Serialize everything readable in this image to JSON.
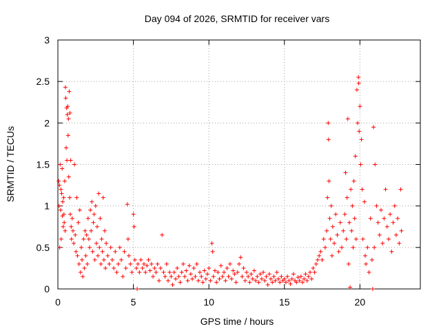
{
  "chart_data": {
    "type": "scatter",
    "title": "Day 094 of 2026, SRMTID for receiver vars",
    "xlabel": "GPS time / hours",
    "ylabel": "SRMTID / TECUs",
    "xlim": [
      0,
      24
    ],
    "ylim": [
      0,
      3
    ],
    "xticks": [
      0,
      5,
      10,
      15,
      20
    ],
    "yticks": [
      0,
      0.5,
      1,
      1.5,
      2,
      2.5,
      3
    ],
    "ytick_labels": [
      "0",
      "0.5",
      "1",
      "1.5",
      "2",
      "2.5",
      "3"
    ],
    "grid": true,
    "marker": "+",
    "color": "#ff0000",
    "series": [
      {
        "name": "SRMTID",
        "points": [
          [
            0.05,
            1.3
          ],
          [
            0.08,
            1.0
          ],
          [
            0.1,
            1.25
          ],
          [
            0.12,
            0.5
          ],
          [
            0.15,
            1.5
          ],
          [
            0.18,
            0.95
          ],
          [
            0.2,
            1.2
          ],
          [
            0.22,
            0.6
          ],
          [
            0.25,
            1.15
          ],
          [
            0.28,
            1.45
          ],
          [
            0.3,
            0.88
          ],
          [
            0.32,
            1.05
          ],
          [
            0.35,
            0.75
          ],
          [
            0.38,
            1.1
          ],
          [
            0.4,
            0.9
          ],
          [
            0.42,
            0.8
          ],
          [
            0.45,
            1.3
          ],
          [
            0.48,
            0.7
          ],
          [
            0.5,
            2.43
          ],
          [
            0.52,
            2.3
          ],
          [
            0.55,
            1.7
          ],
          [
            0.58,
            2.18
          ],
          [
            0.6,
            1.55
          ],
          [
            0.62,
            2.1
          ],
          [
            0.65,
            2.2
          ],
          [
            0.68,
            1.85
          ],
          [
            0.7,
            2.05
          ],
          [
            0.72,
            1.35
          ],
          [
            0.75,
            2.38
          ],
          [
            0.78,
            1.1
          ],
          [
            0.8,
            2.12
          ],
          [
            0.82,
            0.9
          ],
          [
            0.85,
            1.55
          ],
          [
            0.88,
            0.75
          ],
          [
            0.9,
            0.6
          ],
          [
            0.95,
            0.85
          ],
          [
            1.0,
            0.7
          ],
          [
            1.05,
            0.55
          ],
          [
            1.1,
            1.5
          ],
          [
            1.15,
            0.65
          ],
          [
            1.2,
            0.45
          ],
          [
            1.25,
            1.1
          ],
          [
            1.3,
            0.4
          ],
          [
            1.35,
            0.8
          ],
          [
            1.4,
            0.3
          ],
          [
            1.45,
            0.95
          ],
          [
            1.5,
            0.2
          ],
          [
            1.55,
            0.5
          ],
          [
            1.6,
            0.35
          ],
          [
            1.65,
            0.15
          ],
          [
            1.7,
            0.6
          ],
          [
            1.75,
            0.25
          ],
          [
            1.8,
            0.7
          ],
          [
            1.85,
            0.4
          ],
          [
            1.9,
            0.65
          ],
          [
            1.95,
            0.3
          ],
          [
            2.0,
            0.85
          ],
          [
            2.05,
            0.6
          ],
          [
            2.1,
            0.5
          ],
          [
            2.15,
            0.95
          ],
          [
            2.2,
            0.7
          ],
          [
            2.25,
            1.05
          ],
          [
            2.3,
            0.45
          ],
          [
            2.35,
            0.8
          ],
          [
            2.4,
            0.9
          ],
          [
            2.45,
            0.35
          ],
          [
            2.5,
            1.0
          ],
          [
            2.55,
            0.55
          ],
          [
            2.6,
            0.75
          ],
          [
            2.65,
            0.4
          ],
          [
            2.7,
            1.15
          ],
          [
            2.75,
            0.5
          ],
          [
            2.8,
            0.85
          ],
          [
            2.85,
            0.3
          ],
          [
            2.9,
            0.6
          ],
          [
            2.95,
            0.45
          ],
          [
            3.0,
            1.1
          ],
          [
            3.05,
            0.35
          ],
          [
            3.1,
            0.7
          ],
          [
            3.15,
            0.25
          ],
          [
            3.2,
            0.55
          ],
          [
            3.3,
            0.4
          ],
          [
            3.4,
            0.3
          ],
          [
            3.5,
            0.5
          ],
          [
            3.6,
            0.35
          ],
          [
            3.7,
            0.25
          ],
          [
            3.8,
            0.45
          ],
          [
            3.9,
            0.2
          ],
          [
            4.0,
            0.3
          ],
          [
            4.1,
            0.5
          ],
          [
            4.2,
            0.35
          ],
          [
            4.3,
            0.15
          ],
          [
            4.4,
            0.45
          ],
          [
            4.5,
            0.25
          ],
          [
            4.6,
            1.02
          ],
          [
            4.65,
            0.6
          ],
          [
            4.7,
            0.4
          ],
          [
            4.8,
            0.3
          ],
          [
            4.9,
            0.2
          ],
          [
            5.0,
            0.9
          ],
          [
            5.05,
            0.75
          ],
          [
            5.1,
            0.35
          ],
          [
            5.2,
            0.25
          ],
          [
            5.25,
            0.0
          ],
          [
            5.3,
            0.3
          ],
          [
            5.4,
            0.2
          ],
          [
            5.5,
            0.35
          ],
          [
            5.6,
            0.25
          ],
          [
            5.7,
            0.3
          ],
          [
            5.8,
            0.2
          ],
          [
            5.9,
            0.28
          ],
          [
            6.0,
            0.35
          ],
          [
            6.1,
            0.22
          ],
          [
            6.2,
            0.3
          ],
          [
            6.3,
            0.15
          ],
          [
            6.4,
            0.25
          ],
          [
            6.5,
            0.2
          ],
          [
            6.6,
            0.3
          ],
          [
            6.7,
            0.1
          ],
          [
            6.8,
            0.25
          ],
          [
            6.9,
            0.65
          ],
          [
            7.0,
            0.2
          ],
          [
            7.1,
            0.15
          ],
          [
            7.2,
            0.3
          ],
          [
            7.3,
            0.1
          ],
          [
            7.4,
            0.2
          ],
          [
            7.5,
            0.15
          ],
          [
            7.6,
            0.05
          ],
          [
            7.7,
            0.2
          ],
          [
            7.8,
            0.12
          ],
          [
            7.9,
            0.25
          ],
          [
            8.0,
            0.15
          ],
          [
            8.1,
            0.08
          ],
          [
            8.2,
            0.2
          ],
          [
            8.3,
            0.3
          ],
          [
            8.4,
            0.15
          ],
          [
            8.5,
            0.22
          ],
          [
            8.6,
            0.1
          ],
          [
            8.7,
            0.28
          ],
          [
            8.8,
            0.18
          ],
          [
            8.9,
            0.12
          ],
          [
            9.0,
            0.25
          ],
          [
            9.1,
            0.15
          ],
          [
            9.2,
            0.3
          ],
          [
            9.3,
            0.1
          ],
          [
            9.4,
            0.2
          ],
          [
            9.5,
            0.15
          ],
          [
            9.6,
            0.08
          ],
          [
            9.7,
            0.22
          ],
          [
            9.8,
            0.12
          ],
          [
            9.9,
            0.18
          ],
          [
            10.0,
            0.25
          ],
          [
            10.1,
            0.1
          ],
          [
            10.2,
            0.55
          ],
          [
            10.25,
            0.45
          ],
          [
            10.3,
            0.15
          ],
          [
            10.4,
            0.22
          ],
          [
            10.5,
            0.08
          ],
          [
            10.6,
            0.2
          ],
          [
            10.7,
            0.12
          ],
          [
            10.8,
            0.28
          ],
          [
            10.9,
            0.15
          ],
          [
            11.0,
            0.2
          ],
          [
            11.1,
            0.1
          ],
          [
            11.2,
            0.25
          ],
          [
            11.3,
            0.15
          ],
          [
            11.4,
            0.3
          ],
          [
            11.5,
            0.12
          ],
          [
            11.6,
            0.22
          ],
          [
            11.7,
            0.18
          ],
          [
            11.8,
            0.08
          ],
          [
            11.9,
            0.2
          ],
          [
            12.0,
            0.3
          ],
          [
            12.1,
            0.38
          ],
          [
            12.2,
            0.15
          ],
          [
            12.3,
            0.25
          ],
          [
            12.4,
            0.1
          ],
          [
            12.5,
            0.2
          ],
          [
            12.6,
            0.15
          ],
          [
            12.7,
            0.08
          ],
          [
            12.8,
            0.18
          ],
          [
            12.9,
            0.12
          ],
          [
            13.0,
            0.22
          ],
          [
            13.1,
            0.1
          ],
          [
            13.2,
            0.15
          ],
          [
            13.3,
            0.08
          ],
          [
            13.4,
            0.18
          ],
          [
            13.5,
            0.12
          ],
          [
            13.6,
            0.2
          ],
          [
            13.7,
            0.1
          ],
          [
            13.8,
            0.15
          ],
          [
            13.9,
            0.05
          ],
          [
            14.0,
            0.18
          ],
          [
            14.1,
            0.12
          ],
          [
            14.2,
            0.08
          ],
          [
            14.3,
            0.15
          ],
          [
            14.4,
            0.1
          ],
          [
            14.5,
            0.2
          ],
          [
            14.6,
            0.12
          ],
          [
            14.7,
            0.08
          ],
          [
            14.8,
            0.15
          ],
          [
            14.9,
            0.1
          ],
          [
            15.0,
            0.12
          ],
          [
            15.1,
            0.08
          ],
          [
            15.2,
            0.15
          ],
          [
            15.3,
            0.1
          ],
          [
            15.4,
            0.06
          ],
          [
            15.5,
            0.12
          ],
          [
            15.6,
            0.18
          ],
          [
            15.7,
            0.1
          ],
          [
            15.8,
            0.08
          ],
          [
            15.9,
            0.14
          ],
          [
            16.0,
            0.1
          ],
          [
            16.1,
            0.15
          ],
          [
            16.2,
            0.08
          ],
          [
            16.3,
            0.12
          ],
          [
            16.4,
            0.18
          ],
          [
            16.5,
            0.1
          ],
          [
            16.6,
            0.15
          ],
          [
            16.7,
            0.2
          ],
          [
            16.8,
            0.12
          ],
          [
            16.9,
            0.25
          ],
          [
            17.0,
            0.2
          ],
          [
            17.1,
            0.3
          ],
          [
            17.2,
            0.35
          ],
          [
            17.3,
            0.4
          ],
          [
            17.4,
            0.45
          ],
          [
            17.5,
            0.35
          ],
          [
            17.6,
            0.6
          ],
          [
            17.7,
            0.5
          ],
          [
            17.8,
            0.7
          ],
          [
            17.85,
            1.1
          ],
          [
            17.9,
            2.0
          ],
          [
            17.92,
            1.8
          ],
          [
            17.95,
            1.3
          ],
          [
            18.0,
            0.85
          ],
          [
            18.05,
            0.6
          ],
          [
            18.1,
            1.0
          ],
          [
            18.15,
            0.4
          ],
          [
            18.2,
            0.75
          ],
          [
            18.3,
            0.55
          ],
          [
            18.4,
            0.9
          ],
          [
            18.5,
            0.65
          ],
          [
            18.6,
            0.45
          ],
          [
            18.7,
            0.8
          ],
          [
            18.8,
            0.5
          ],
          [
            18.9,
            0.7
          ],
          [
            19.0,
            0.9
          ],
          [
            19.05,
            1.4
          ],
          [
            19.1,
            0.6
          ],
          [
            19.15,
            1.1
          ],
          [
            19.2,
            2.05
          ],
          [
            19.25,
            0.3
          ],
          [
            19.3,
            0.8
          ],
          [
            19.35,
            0.02
          ],
          [
            19.4,
            1.2
          ],
          [
            19.45,
            0.7
          ],
          [
            19.5,
            1.0
          ],
          [
            19.55,
            0.5
          ],
          [
            19.6,
            1.3
          ],
          [
            19.65,
            0.85
          ],
          [
            19.7,
            1.6
          ],
          [
            19.75,
            0.6
          ],
          [
            19.8,
            2.4
          ],
          [
            19.85,
            2.0
          ],
          [
            19.9,
            2.55
          ],
          [
            19.92,
            2.48
          ],
          [
            19.95,
            1.9
          ],
          [
            20.0,
            2.2
          ],
          [
            20.05,
            1.5
          ],
          [
            20.1,
            1.8
          ],
          [
            20.15,
            1.2
          ],
          [
            20.2,
            0.6
          ],
          [
            20.3,
            1.05
          ],
          [
            20.35,
            0.4
          ],
          [
            20.4,
            0.3
          ],
          [
            20.5,
            0.5
          ],
          [
            20.6,
            0.2
          ],
          [
            20.7,
            0.85
          ],
          [
            20.8,
            0.35
          ],
          [
            20.85,
            0.0
          ],
          [
            20.9,
            1.95
          ],
          [
            20.95,
            0.5
          ],
          [
            21.0,
            1.5
          ],
          [
            21.1,
            1.0
          ],
          [
            21.2,
            0.8
          ],
          [
            21.3,
            0.65
          ],
          [
            21.4,
            0.95
          ],
          [
            21.5,
            0.55
          ],
          [
            21.6,
            0.85
          ],
          [
            21.7,
            1.2
          ],
          [
            21.8,
            0.75
          ],
          [
            21.9,
            0.6
          ],
          [
            22.0,
            0.9
          ],
          [
            22.1,
            0.45
          ],
          [
            22.2,
            0.8
          ],
          [
            22.3,
            1.0
          ],
          [
            22.4,
            0.65
          ],
          [
            22.5,
            0.85
          ],
          [
            22.6,
            0.55
          ],
          [
            22.7,
            1.2
          ],
          [
            22.75,
            0.7
          ]
        ]
      }
    ]
  }
}
